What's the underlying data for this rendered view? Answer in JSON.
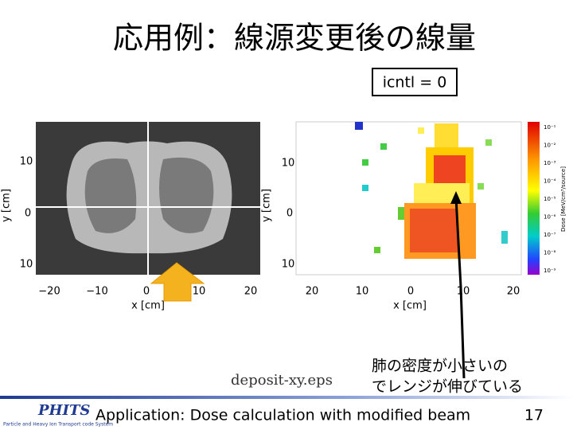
{
  "header": {
    "title": "応用例：線源変更後の線量"
  },
  "badge": "icntl = 0",
  "left_plot": {
    "ylabel": "y [cm]",
    "xlabel": "x [cm]",
    "yticks": [
      "10",
      "0",
      "10"
    ],
    "xticks": [
      "−20",
      "−10",
      "0",
      "10",
      "20"
    ]
  },
  "right_plot": {
    "ylabel": "y [cm]",
    "xlabel": "x [cm]",
    "yticks": [
      "10",
      "0",
      "10"
    ],
    "xticks": [
      "20",
      "10",
      "0",
      "10",
      "20"
    ],
    "colorbar_label": "Dose [MeV/cm³/source]",
    "colorbar_ticks": [
      "10⁻¹",
      "10⁻²",
      "10⁻³",
      "10⁻⁴",
      "10⁻⁵",
      "10⁻⁶",
      "10⁻⁷",
      "10⁻⁸",
      "10⁻⁹"
    ]
  },
  "caption": "deposit-xy.eps",
  "note": [
    "肺の密度が小さいの",
    "でレンジが伸びている"
  ],
  "footer": {
    "logo": "PHITS",
    "logo_sub": "Particle and Heavy Ion Transport code System",
    "text": "Application: Dose calculation with modified beam",
    "page": "17"
  }
}
